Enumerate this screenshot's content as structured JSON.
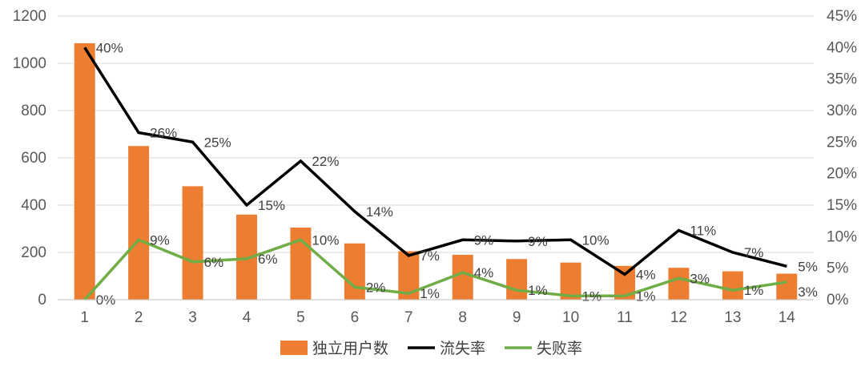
{
  "chart_data": {
    "type": "bar",
    "categories": [
      "1",
      "2",
      "3",
      "4",
      "5",
      "6",
      "7",
      "8",
      "9",
      "10",
      "11",
      "12",
      "13",
      "14"
    ],
    "series": [
      {
        "name": "独立用户数",
        "type": "bar",
        "axis": "left",
        "color": "#ED7D31",
        "values": [
          1085,
          650,
          480,
          360,
          305,
          238,
          205,
          190,
          172,
          157,
          143,
          135,
          120,
          110
        ]
      },
      {
        "name": "流失率",
        "type": "line",
        "axis": "right",
        "color": "#000000",
        "values": [
          0.4,
          0.265,
          0.25,
          0.15,
          0.22,
          0.14,
          0.07,
          0.095,
          0.093,
          0.095,
          0.04,
          0.11,
          0.075,
          0.053
        ],
        "labels": [
          "40%",
          "26%",
          "25%",
          "15%",
          "22%",
          "14%",
          "7%",
          "9%",
          "9%",
          "10%",
          "4%",
          "11%",
          "7%",
          "5%"
        ]
      },
      {
        "name": "失败率",
        "type": "line",
        "axis": "right",
        "color": "#70AD47",
        "values": [
          0.0,
          0.095,
          0.06,
          0.065,
          0.095,
          0.02,
          0.01,
          0.043,
          0.015,
          0.006,
          0.006,
          0.034,
          0.015,
          0.028
        ],
        "labels": [
          "0%",
          "9%",
          "6%",
          "6%",
          "10%",
          "2%",
          "1%",
          "4%",
          "1%",
          "1%",
          "1%",
          "3%",
          "1%",
          "3%"
        ]
      }
    ],
    "y_left": {
      "ylim": [
        0,
        1200
      ],
      "ticks": [
        "0",
        "200",
        "400",
        "600",
        "800",
        "1000",
        "1200"
      ]
    },
    "y_right": {
      "ylim": [
        0,
        0.45
      ],
      "ticks": [
        "0%",
        "5%",
        "10%",
        "15%",
        "20%",
        "25%",
        "30%",
        "35%",
        "40%",
        "45%"
      ]
    },
    "grid": true,
    "legend_position": "bottom"
  }
}
